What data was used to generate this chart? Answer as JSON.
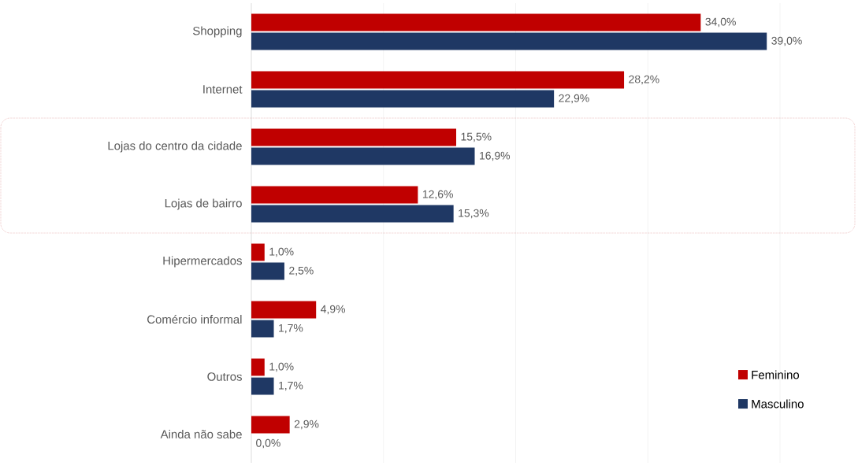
{
  "chart_data": {
    "type": "bar",
    "orientation": "horizontal",
    "categories": [
      "Shopping",
      "Internet",
      "Lojas do centro da cidade",
      "Lojas de bairro",
      "Hipermercados",
      "Comércio informal",
      "Outros",
      "Ainda não sabe"
    ],
    "series": [
      {
        "name": "Feminino",
        "color": "#c00000",
        "values": [
          34.0,
          28.2,
          15.5,
          12.6,
          1.0,
          4.9,
          1.0,
          2.9
        ],
        "value_labels": [
          "34,0%",
          "28,2%",
          "15,5%",
          "12,6%",
          "1,0%",
          "4,9%",
          "1,0%",
          "2,9%"
        ]
      },
      {
        "name": "Masculino",
        "color": "#1f3864",
        "values": [
          39.0,
          22.9,
          16.9,
          15.3,
          2.5,
          1.7,
          1.7,
          0.0
        ],
        "value_labels": [
          "39,0%",
          "22,9%",
          "16,9%",
          "15,3%",
          "2,5%",
          "1,7%",
          "1,7%",
          "0,0%"
        ]
      }
    ],
    "xlim": [
      0,
      40
    ],
    "xticks": [
      {
        "value": 0,
        "label": null
      },
      {
        "value": 10,
        "label": null
      },
      {
        "value": 20,
        "label": null
      },
      {
        "value": 30,
        "label": null
      },
      {
        "value": 40,
        "label": null
      }
    ],
    "tick_labels": "y",
    "grid": "x",
    "legend": "bottom right"
  }
}
